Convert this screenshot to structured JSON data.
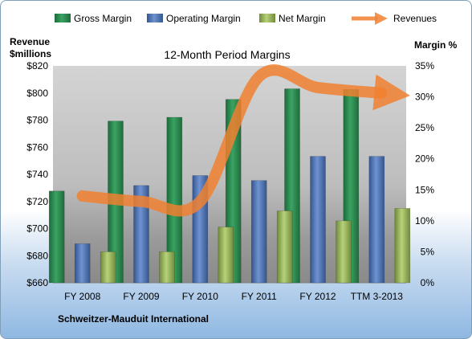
{
  "chart_data": {
    "type": "bar",
    "title": "12-Month Period Margins",
    "company": "Schweitzer-Mauduit International",
    "left_axis_label_line1": "Revenue",
    "left_axis_label_line2": "$millions",
    "right_axis_label": "Margin %",
    "categories": [
      "FY 2008",
      "FY 2009",
      "FY 2010",
      "FY 2011",
      "FY 2012",
      "TTM 3-2013"
    ],
    "ylim_left": [
      660,
      820
    ],
    "ylim_right": [
      0,
      35
    ],
    "left_ticks": [
      660,
      680,
      700,
      720,
      740,
      760,
      780,
      800,
      820
    ],
    "left_tick_labels": [
      "$660",
      "$680",
      "$700",
      "$720",
      "$740",
      "$760",
      "$780",
      "$800",
      "$820"
    ],
    "right_ticks": [
      0,
      5,
      10,
      15,
      20,
      25,
      30,
      35
    ],
    "right_tick_labels": [
      "0%",
      "5%",
      "10%",
      "15%",
      "20%",
      "25%",
      "30%",
      "35%"
    ],
    "series": [
      {
        "name": "Gross Margin",
        "axis": "right",
        "kind": "bar",
        "color": "#2e8b4f",
        "values": [
          14.8,
          26.1,
          26.7,
          29.6,
          31.3,
          31.2
        ]
      },
      {
        "name": "Operating Margin",
        "axis": "right",
        "kind": "bar",
        "color": "#4a72b8",
        "values": [
          6.3,
          15.7,
          17.3,
          16.5,
          20.4,
          20.4
        ]
      },
      {
        "name": "Net Margin",
        "axis": "right",
        "kind": "bar",
        "color": "#9bbb59",
        "values": [
          5.0,
          5.0,
          9.0,
          11.6,
          10.0,
          12.0
        ]
      },
      {
        "name": "Revenues",
        "axis": "left",
        "kind": "line",
        "color": "#f08030",
        "values": [
          724,
          720,
          720,
          812,
          804,
          800
        ]
      }
    ],
    "grid": false,
    "legend_position": "top"
  }
}
